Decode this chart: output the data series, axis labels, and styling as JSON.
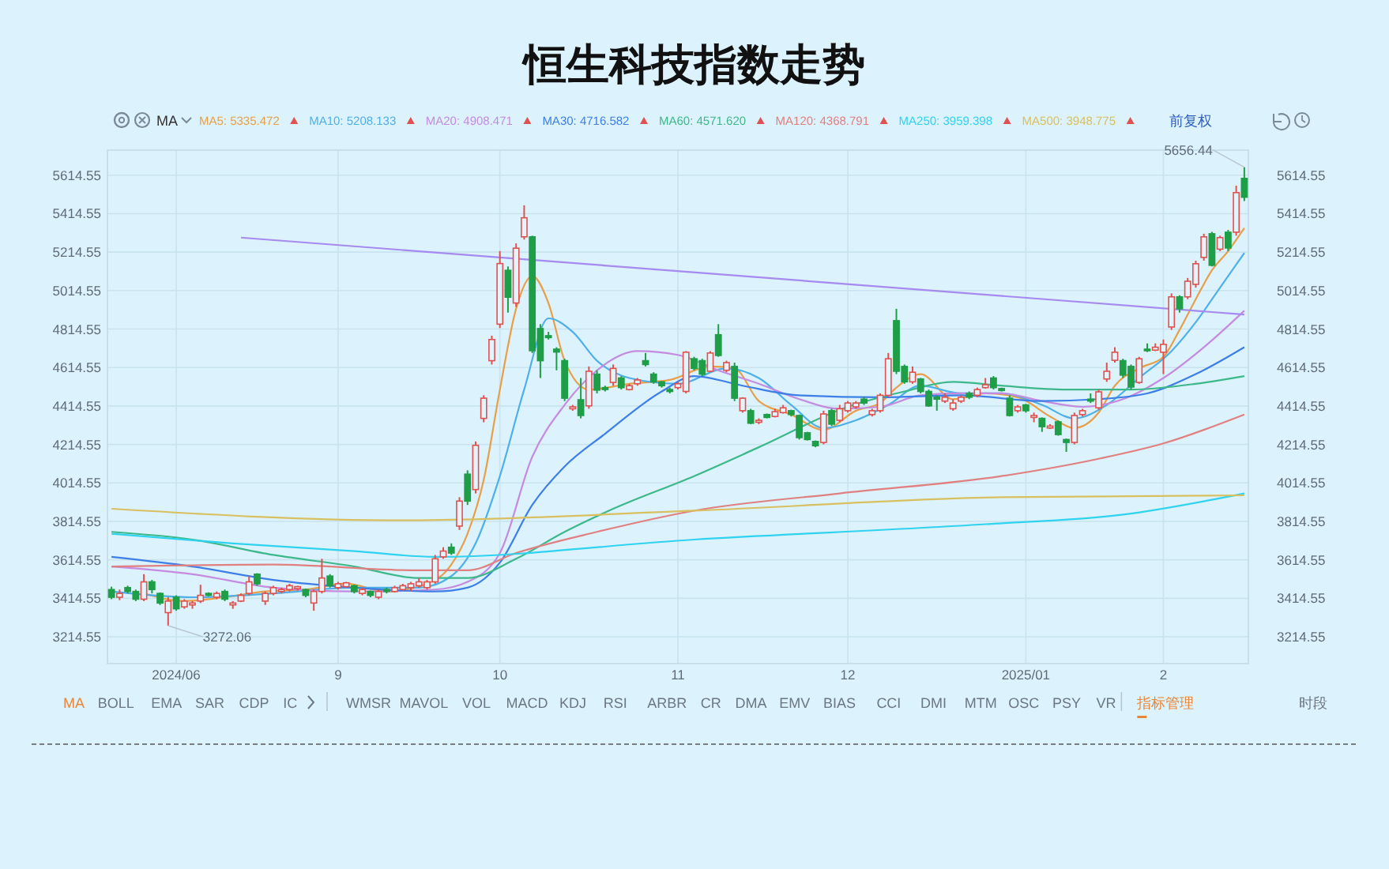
{
  "chart_data": {
    "type": "candlestick",
    "title": "恒生科技指数走势",
    "annotations": [
      "MA",
      "前复权",
      "MA",
      "BOLL",
      "EMA",
      "SAR",
      "CDP",
      "IC",
      "WMSR",
      "MAVOL",
      "VOL",
      "MACD",
      "KDJ",
      "RSI",
      "ARBR",
      "CR",
      "DMA",
      "EMV",
      "BIAS",
      "CCI",
      "DMI",
      "MTM",
      "OSC",
      "PSY",
      "VR",
      "指标管理",
      "时段",
      "5656.44",
      "3272.06"
    ],
    "categories": [
      null,
      null,
      null,
      null,
      null,
      null,
      null,
      null,
      "2024/06",
      null,
      null,
      null,
      null,
      null,
      null,
      null,
      null,
      null,
      null,
      null,
      null,
      null,
      null,
      null,
      null,
      null,
      null,
      null,
      "9",
      null,
      null,
      null,
      null,
      null,
      null,
      null,
      null,
      null,
      null,
      null,
      null,
      null,
      null,
      null,
      null,
      null,
      null,
      null,
      "10",
      null,
      null,
      null,
      null,
      null,
      null,
      null,
      null,
      null,
      null,
      null,
      null,
      null,
      null,
      null,
      null,
      null,
      null,
      null,
      null,
      null,
      "11",
      null,
      null,
      null,
      null,
      null,
      null,
      null,
      null,
      null,
      null,
      null,
      null,
      null,
      null,
      null,
      null,
      null,
      null,
      null,
      null,
      "12",
      null,
      null,
      null,
      null,
      null,
      null,
      null,
      null,
      null,
      null,
      null,
      null,
      null,
      null,
      null,
      null,
      null,
      null,
      null,
      null,
      null,
      "2025/01",
      null,
      null,
      null,
      null,
      null,
      null,
      null,
      null,
      null,
      null,
      null,
      null,
      null,
      null,
      null,
      null,
      "2",
      null,
      null,
      null,
      null,
      null,
      null,
      null,
      null,
      null,
      null
    ],
    "ohlc": [
      [
        3460,
        3475,
        3410,
        3420
      ],
      [
        3420,
        3460,
        3405,
        3440
      ],
      [
        3470,
        3480,
        3440,
        3450
      ],
      [
        3450,
        3460,
        3400,
        3410
      ],
      [
        3410,
        3540,
        3400,
        3500
      ],
      [
        3500,
        3510,
        3440,
        3460
      ],
      [
        3440,
        3445,
        3380,
        3390
      ],
      [
        3340,
        3420,
        3272.06,
        3400
      ],
      [
        3420,
        3430,
        3350,
        3360
      ],
      [
        3370,
        3410,
        3360,
        3400
      ],
      [
        3380,
        3400,
        3360,
        3390
      ],
      [
        3400,
        3485,
        3390,
        3430
      ],
      [
        3440,
        3445,
        3425,
        3430
      ],
      [
        3420,
        3450,
        3410,
        3440
      ],
      [
        3450,
        3460,
        3400,
        3410
      ],
      [
        3380,
        3400,
        3360,
        3390
      ],
      [
        3400,
        3440,
        3395,
        3430
      ],
      [
        3440,
        3530,
        3430,
        3500
      ],
      [
        3540,
        3545,
        3480,
        3490
      ],
      [
        3400,
        3450,
        3380,
        3440
      ],
      [
        3440,
        3480,
        3430,
        3470
      ],
      [
        3450,
        3470,
        3440,
        3460
      ],
      [
        3460,
        3490,
        3450,
        3480
      ],
      [
        3465,
        3480,
        3455,
        3475
      ],
      [
        3460,
        3465,
        3420,
        3430
      ],
      [
        3390,
        3460,
        3350,
        3450
      ],
      [
        3450,
        3620,
        3440,
        3520
      ],
      [
        3530,
        3540,
        3470,
        3480
      ],
      [
        3470,
        3500,
        3460,
        3490
      ],
      [
        3475,
        3500,
        3470,
        3495
      ],
      [
        3480,
        3485,
        3440,
        3450
      ],
      [
        3440,
        3470,
        3430,
        3460
      ],
      [
        3450,
        3455,
        3420,
        3430
      ],
      [
        3420,
        3460,
        3410,
        3450
      ],
      [
        3460,
        3470,
        3440,
        3450
      ],
      [
        3450,
        3480,
        3445,
        3470
      ],
      [
        3460,
        3490,
        3455,
        3480
      ],
      [
        3470,
        3500,
        3450,
        3490
      ],
      [
        3480,
        3520,
        3470,
        3500
      ],
      [
        3470,
        3510,
        3460,
        3500
      ],
      [
        3500,
        3640,
        3490,
        3620
      ],
      [
        3630,
        3680,
        3620,
        3660
      ],
      [
        3680,
        3700,
        3640,
        3650
      ],
      [
        3790,
        3940,
        3770,
        3920
      ],
      [
        4060,
        4080,
        3900,
        3920
      ],
      [
        3980,
        4230,
        3960,
        4210
      ],
      [
        4350,
        4470,
        4330,
        4455
      ],
      [
        4650,
        4780,
        4630,
        4760
      ],
      [
        4840,
        5220,
        4820,
        5155
      ],
      [
        5120,
        5140,
        4900,
        4980
      ],
      [
        4950,
        5260,
        4930,
        5235
      ],
      [
        5294,
        5458,
        5280,
        5393
      ],
      [
        5294,
        5300,
        4690,
        4702
      ],
      [
        4817,
        4840,
        4560,
        4650
      ],
      [
        4780,
        4800,
        4760,
        4770
      ],
      [
        4710,
        4720,
        4600,
        4695
      ],
      [
        4650,
        4660,
        4440,
        4455
      ],
      [
        4400,
        4420,
        4390,
        4410
      ],
      [
        4447,
        4560,
        4350,
        4365
      ],
      [
        4415,
        4620,
        4400,
        4595
      ],
      [
        4580,
        4600,
        4480,
        4497
      ],
      [
        4510,
        4520,
        4490,
        4500
      ],
      [
        4537,
        4630,
        4520,
        4610
      ],
      [
        4560,
        4570,
        4500,
        4510
      ],
      [
        4500,
        4530,
        4495,
        4520
      ],
      [
        4530,
        4560,
        4520,
        4550
      ],
      [
        4650,
        4690,
        4620,
        4630
      ],
      [
        4580,
        4590,
        4530,
        4540
      ],
      [
        4540,
        4545,
        4510,
        4520
      ],
      [
        4500,
        4510,
        4480,
        4490
      ],
      [
        4510,
        4540,
        4500,
        4530
      ],
      [
        4490,
        4700,
        4480,
        4694
      ],
      [
        4660,
        4670,
        4600,
        4610
      ],
      [
        4650,
        4660,
        4570,
        4580
      ],
      [
        4595,
        4700,
        4590,
        4690
      ],
      [
        4785,
        4840,
        4670,
        4677
      ],
      [
        4600,
        4650,
        4590,
        4640
      ],
      [
        4620,
        4640,
        4440,
        4455
      ],
      [
        4390,
        4460,
        4380,
        4455
      ],
      [
        4390,
        4400,
        4320,
        4325
      ],
      [
        4330,
        4350,
        4320,
        4340
      ],
      [
        4370,
        4375,
        4350,
        4355
      ],
      [
        4360,
        4400,
        4355,
        4385
      ],
      [
        4380,
        4420,
        4375,
        4405
      ],
      [
        4390,
        4395,
        4360,
        4370
      ],
      [
        4365,
        4370,
        4240,
        4250
      ],
      [
        4275,
        4280,
        4235,
        4240
      ],
      [
        4230,
        4235,
        4200,
        4208
      ],
      [
        4225,
        4390,
        4215,
        4373
      ],
      [
        4390,
        4400,
        4310,
        4320
      ],
      [
        4340,
        4420,
        4330,
        4400
      ],
      [
        4390,
        4440,
        4380,
        4430
      ],
      [
        4410,
        4440,
        4400,
        4430
      ],
      [
        4450,
        4460,
        4420,
        4430
      ],
      [
        4370,
        4400,
        4360,
        4390
      ],
      [
        4390,
        4480,
        4380,
        4470
      ],
      [
        4470,
        4690,
        4460,
        4660
      ],
      [
        4858,
        4920,
        4580,
        4595
      ],
      [
        4620,
        4630,
        4530,
        4540
      ],
      [
        4540,
        4620,
        4530,
        4590
      ],
      [
        4555,
        4560,
        4480,
        4490
      ],
      [
        4490,
        4500,
        4410,
        4415
      ],
      [
        4460,
        4470,
        4390,
        4450
      ],
      [
        4440,
        4480,
        4430,
        4460
      ],
      [
        4400,
        4450,
        4390,
        4430
      ],
      [
        4440,
        4470,
        4430,
        4460
      ],
      [
        4480,
        4490,
        4450,
        4460
      ],
      [
        4470,
        4510,
        4460,
        4500
      ],
      [
        4510,
        4560,
        4505,
        4525
      ],
      [
        4560,
        4570,
        4500,
        4510
      ],
      [
        4505,
        4510,
        4490,
        4495
      ],
      [
        4455,
        4470,
        4360,
        4365
      ],
      [
        4390,
        4420,
        4380,
        4410
      ],
      [
        4420,
        4425,
        4380,
        4390
      ],
      [
        4355,
        4380,
        4330,
        4365
      ],
      [
        4350,
        4355,
        4280,
        4307
      ],
      [
        4300,
        4320,
        4295,
        4310
      ],
      [
        4332,
        4340,
        4260,
        4266
      ],
      [
        4240,
        4245,
        4176,
        4225
      ],
      [
        4225,
        4380,
        4215,
        4365
      ],
      [
        4370,
        4400,
        4360,
        4390
      ],
      [
        4450,
        4480,
        4430,
        4440
      ],
      [
        4405,
        4500,
        4395,
        4488
      ],
      [
        4555,
        4640,
        4540,
        4595
      ],
      [
        4652,
        4720,
        4640,
        4694
      ],
      [
        4650,
        4660,
        4560,
        4575
      ],
      [
        4620,
        4630,
        4500,
        4513
      ],
      [
        4537,
        4670,
        4530,
        4660
      ],
      [
        4710,
        4740,
        4695,
        4702
      ],
      [
        4705,
        4740,
        4700,
        4720
      ],
      [
        4694,
        4760,
        4580,
        4735
      ],
      [
        4825,
        5000,
        4810,
        4982
      ],
      [
        4982,
        4990,
        4900,
        4920
      ],
      [
        4982,
        5080,
        4970,
        5063
      ],
      [
        5047,
        5170,
        5030,
        5154
      ],
      [
        5187,
        5310,
        5170,
        5294
      ],
      [
        5310,
        5320,
        5140,
        5146
      ],
      [
        5230,
        5300,
        5220,
        5290
      ],
      [
        5318,
        5330,
        5220,
        5236
      ],
      [
        5318,
        5560,
        5300,
        5524
      ],
      [
        5598,
        5656.44,
        5480,
        5500
      ]
    ],
    "series": [
      {
        "type": "line",
        "name": "MA5: 5335.472",
        "color": "#e8a048",
        "values": [
          null,
          null,
          null,
          null,
          3440,
          null,
          null,
          null,
          null,
          3400,
          null,
          null,
          null,
          null,
          3420,
          null,
          null,
          null,
          null,
          3450,
          null,
          null,
          null,
          null,
          3460,
          null,
          null,
          null,
          null,
          3490,
          null,
          null,
          null,
          null,
          3450,
          null,
          null,
          null,
          null,
          3490,
          null,
          null,
          3590,
          null,
          3750,
          null,
          4030,
          null,
          4500,
          null,
          4920,
          null,
          5090,
          null,
          4950,
          null,
          4650,
          null,
          null,
          4500,
          null,
          null,
          null,
          null,
          4530,
          null,
          null,
          null,
          null,
          4550,
          null,
          null,
          null,
          null,
          4620,
          null,
          null,
          4610,
          null,
          null,
          4440,
          null,
          null,
          null,
          4370,
          null,
          null,
          null,
          4290,
          null,
          null,
          null,
          4390,
          null,
          null,
          4430,
          null,
          4510,
          null,
          null,
          4580,
          null,
          null,
          null,
          4450,
          null,
          null,
          null,
          4480,
          null,
          null,
          null,
          4460,
          null,
          null,
          null,
          4360,
          null,
          null,
          4300,
          null,
          null,
          4380,
          null,
          4520,
          null,
          null,
          4610,
          null,
          null,
          4670,
          null,
          4810,
          null,
          4970,
          null,
          5120,
          null,
          5220,
          null,
          5340
        ]
      },
      {
        "type": "line",
        "name": "MA10: 5208.133",
        "color": "#4fb0e8",
        "values": [
          3450,
          null,
          null,
          null,
          null,
          null,
          null,
          null,
          null,
          null,
          3420,
          null,
          null,
          null,
          null,
          null,
          null,
          null,
          null,
          null,
          3440,
          null,
          null,
          null,
          null,
          null,
          null,
          null,
          null,
          null,
          3470,
          null,
          null,
          null,
          null,
          null,
          null,
          null,
          3470,
          null,
          null,
          null,
          3530,
          null,
          null,
          3700,
          null,
          null,
          4050,
          null,
          null,
          4500,
          null,
          null,
          4870,
          null,
          null,
          4800,
          null,
          null,
          4650,
          null,
          null,
          null,
          4560,
          null,
          null,
          null,
          null,
          null,
          4530,
          null,
          null,
          null,
          null,
          null,
          4610,
          null,
          null,
          null,
          4560,
          null,
          null,
          null,
          4420,
          null,
          null,
          null,
          4300,
          null,
          null,
          null,
          4340,
          null,
          null,
          null,
          4420,
          null,
          null,
          null,
          4520,
          null,
          null,
          null,
          null,
          4480,
          null,
          null,
          null,
          null,
          4480,
          null,
          null,
          null,
          null,
          4420,
          null,
          null,
          null,
          4350,
          null,
          null,
          null,
          4420,
          null,
          null,
          null,
          4560,
          null,
          null,
          null,
          4700,
          null,
          null,
          4850,
          null,
          null,
          5030,
          null,
          null,
          5210
        ]
      },
      {
        "type": "line",
        "name": "MA20: 4908.471",
        "color": "#c58be0",
        "values": [
          3580,
          null,
          null,
          null,
          null,
          null,
          null,
          null,
          null,
          null,
          3540,
          null,
          null,
          null,
          null,
          null,
          null,
          null,
          null,
          null,
          3470,
          null,
          null,
          null,
          null,
          null,
          null,
          null,
          null,
          null,
          3450,
          null,
          null,
          null,
          null,
          null,
          null,
          null,
          null,
          null,
          3460,
          null,
          null,
          null,
          3500,
          null,
          null,
          null,
          3650,
          null,
          null,
          null,
          4150,
          null,
          null,
          null,
          4420,
          null,
          null,
          null,
          4600,
          null,
          null,
          null,
          null,
          4700,
          null,
          null,
          null,
          null,
          4680,
          null,
          null,
          null,
          null,
          4600,
          null,
          null,
          null,
          null,
          4530,
          null,
          null,
          null,
          null,
          4450,
          null,
          null,
          null,
          null,
          4400,
          null,
          null,
          null,
          null,
          4410,
          null,
          null,
          null,
          null,
          4470,
          null,
          null,
          null,
          null,
          4480,
          null,
          null,
          null,
          null,
          4480,
          null,
          null,
          null,
          null,
          4440,
          null,
          null,
          null,
          null,
          4410,
          null,
          null,
          null,
          null,
          4450,
          null,
          null,
          null,
          null,
          4560,
          null,
          null,
          null,
          null,
          4720,
          null,
          null,
          null,
          null,
          4910
        ]
      },
      {
        "type": "line",
        "name": "MA30: 4716.582",
        "color": "#3d7fe6",
        "values": [
          3630,
          null,
          null,
          null,
          null,
          null,
          null,
          null,
          null,
          null,
          3580,
          null,
          null,
          null,
          null,
          null,
          null,
          null,
          null,
          null,
          3510,
          null,
          null,
          null,
          null,
          null,
          null,
          null,
          null,
          null,
          3470,
          null,
          null,
          null,
          null,
          null,
          null,
          null,
          null,
          null,
          3450,
          null,
          null,
          null,
          3470,
          null,
          null,
          null,
          3600,
          null,
          null,
          null,
          3900,
          null,
          null,
          null,
          4100,
          null,
          null,
          null,
          null,
          4270,
          null,
          null,
          null,
          null,
          null,
          null,
          4490,
          null,
          null,
          null,
          4570,
          null,
          null,
          null,
          null,
          null,
          4520,
          null,
          null,
          null,
          null,
          null,
          null,
          4470,
          null,
          null,
          null,
          null,
          null,
          null,
          null,
          null,
          null,
          4460,
          null,
          null,
          null,
          null,
          null,
          null,
          null,
          null,
          null,
          4470,
          null,
          null,
          null,
          null,
          null,
          null,
          null,
          null,
          null,
          4440,
          null,
          null,
          null,
          null,
          null,
          null,
          4450,
          null,
          null,
          null,
          null,
          null,
          4480,
          null,
          null,
          null,
          null,
          null,
          4580,
          null,
          null,
          null,
          null,
          null,
          4720
        ]
      },
      {
        "type": "line",
        "name": "MA60: 4571.620",
        "color": "#3db88a",
        "values": [
          3760,
          null,
          null,
          null,
          null,
          null,
          null,
          null,
          null,
          null,
          3720,
          null,
          null,
          null,
          null,
          null,
          null,
          null,
          null,
          null,
          3640,
          null,
          null,
          null,
          null,
          null,
          null,
          null,
          null,
          null,
          3580,
          null,
          null,
          null,
          null,
          null,
          null,
          null,
          3520,
          null,
          null,
          null,
          null,
          null,
          3520,
          null,
          null,
          null,
          null,
          null,
          3620,
          null,
          null,
          null,
          null,
          null,
          3760,
          null,
          null,
          null,
          null,
          null,
          3880,
          null,
          null,
          null,
          null,
          null,
          null,
          null,
          null,
          null,
          4050,
          null,
          null,
          null,
          null,
          null,
          null,
          null,
          4200,
          null,
          null,
          null,
          null,
          null,
          null,
          null,
          null,
          null,
          null,
          4410,
          null,
          null,
          null,
          null,
          null,
          null,
          4490,
          null,
          null,
          null,
          null,
          null,
          4540,
          null,
          null,
          null,
          null,
          null,
          4520,
          null,
          null,
          null,
          null,
          null,
          null,
          null,
          4500,
          null,
          null,
          null,
          null,
          null,
          null,
          null,
          4500,
          null,
          null,
          null,
          null,
          null,
          null,
          null,
          4530,
          null,
          null,
          null,
          null,
          null,
          4570
        ]
      },
      {
        "type": "line",
        "name": "MA120: 4368.791",
        "color": "#e08080",
        "values": [
          3580,
          null,
          null,
          null,
          null,
          null,
          null,
          null,
          null,
          null,
          null,
          null,
          null,
          null,
          null,
          null,
          null,
          null,
          null,
          null,
          3590,
          null,
          null,
          null,
          null,
          null,
          null,
          null,
          null,
          null,
          null,
          null,
          null,
          null,
          null,
          null,
          null,
          null,
          3560,
          null,
          null,
          null,
          null,
          null,
          3560,
          null,
          null,
          null,
          null,
          null,
          3650,
          null,
          null,
          null,
          null,
          null,
          null,
          null,
          null,
          null,
          3760,
          null,
          null,
          null,
          null,
          null,
          null,
          null,
          null,
          null,
          null,
          null,
          3870,
          null,
          null,
          null,
          null,
          null,
          null,
          null,
          null,
          null,
          null,
          null,
          null,
          null,
          null,
          null,
          null,
          null,
          3960,
          null,
          null,
          null,
          null,
          null,
          null,
          null,
          null,
          null,
          null,
          null,
          null,
          null,
          null,
          null,
          null,
          null,
          null,
          null,
          4050,
          null,
          null,
          null,
          null,
          null,
          null,
          null,
          null,
          null,
          null,
          null,
          4140,
          null,
          null,
          null,
          null,
          null,
          null,
          null,
          4220,
          null,
          null,
          null,
          null,
          null,
          null,
          null,
          null,
          null,
          4370
        ]
      },
      {
        "type": "line",
        "name": "MA250: 3959.398",
        "color": "#2fd3f0",
        "values": [
          3750,
          null,
          null,
          null,
          null,
          null,
          null,
          null,
          null,
          null,
          null,
          null,
          null,
          null,
          null,
          3700,
          null,
          null,
          null,
          null,
          null,
          null,
          null,
          null,
          null,
          null,
          null,
          null,
          null,
          null,
          3660,
          null,
          null,
          null,
          null,
          null,
          null,
          null,
          null,
          null,
          3630,
          null,
          null,
          null,
          null,
          null,
          null,
          null,
          null,
          null,
          null,
          null,
          null,
          null,
          null,
          null,
          null,
          null,
          null,
          null,
          null,
          null,
          null,
          null,
          null,
          null,
          null,
          null,
          null,
          null,
          null,
          null,
          3720,
          null,
          null,
          null,
          null,
          null,
          null,
          null,
          null,
          null,
          null,
          null,
          null,
          null,
          null,
          null,
          null,
          null,
          null,
          null,
          null,
          null,
          null,
          null,
          null,
          null,
          null,
          null,
          null,
          null,
          null,
          null,
          null,
          null,
          null,
          null,
          3800,
          null,
          null,
          null,
          null,
          null,
          null,
          null,
          null,
          null,
          null,
          null,
          null,
          null,
          null,
          null,
          null,
          3850,
          null,
          null,
          null,
          null,
          null,
          null,
          null,
          null,
          null,
          null,
          null,
          null,
          null,
          null,
          3960
        ]
      },
      {
        "type": "line",
        "name": "MA500: 3948.775",
        "color": "#d8c060",
        "values": [
          3880,
          null,
          null,
          null,
          null,
          null,
          null,
          null,
          null,
          null,
          null,
          null,
          null,
          null,
          null,
          null,
          null,
          null,
          null,
          null,
          null,
          null,
          null,
          null,
          null,
          null,
          null,
          null,
          null,
          null,
          null,
          null,
          null,
          null,
          null,
          null,
          3820,
          null,
          null,
          null,
          null,
          null,
          null,
          null,
          null,
          null,
          null,
          null,
          null,
          null,
          null,
          null,
          null,
          null,
          null,
          null,
          null,
          null,
          null,
          null,
          null,
          null,
          null,
          null,
          null,
          null,
          null,
          null,
          null,
          null,
          null,
          null,
          3870,
          null,
          null,
          null,
          null,
          null,
          null,
          null,
          null,
          null,
          null,
          null,
          null,
          null,
          null,
          null,
          null,
          null,
          null,
          null,
          null,
          null,
          null,
          null,
          null,
          null,
          null,
          null,
          null,
          null,
          null,
          null,
          null,
          null,
          null,
          null,
          null,
          null,
          3940,
          null,
          null,
          null,
          null,
          null,
          null,
          null,
          null,
          null,
          null,
          null,
          null,
          null,
          null,
          null,
          null,
          null,
          null,
          null,
          null,
          null,
          null,
          null,
          null,
          null,
          null,
          null,
          null,
          null,
          3950
        ]
      },
      {
        "type": "line",
        "color": "#a58af0",
        "values": [
          null,
          null,
          null,
          null,
          null,
          null,
          null,
          null,
          null,
          null,
          null,
          null,
          null,
          null,
          null,
          null,
          5290,
          null,
          null,
          null,
          null,
          null,
          null,
          null,
          null,
          null,
          null,
          null,
          null,
          null,
          null,
          null,
          null,
          null,
          null,
          null,
          null,
          null,
          null,
          null,
          null,
          null,
          null,
          null,
          null,
          null,
          null,
          null,
          null,
          null,
          null,
          null,
          null,
          null,
          null,
          null,
          null,
          null,
          null,
          null,
          null,
          null,
          null,
          null,
          null,
          null,
          null,
          null,
          null,
          null,
          null,
          null,
          null,
          null,
          null,
          null,
          null,
          null,
          null,
          null,
          null,
          null,
          null,
          null,
          null,
          null,
          null,
          null,
          null,
          null,
          null,
          null,
          null,
          null,
          null,
          null,
          null,
          null,
          null,
          null,
          null,
          null,
          null,
          null,
          null,
          null,
          null,
          null,
          null,
          null,
          null,
          null,
          null,
          null,
          null,
          null,
          null,
          null,
          null,
          null,
          null,
          null,
          null,
          null,
          null,
          null,
          null,
          null,
          null,
          null,
          null,
          null,
          null,
          null,
          null,
          null,
          null,
          null,
          null,
          null,
          4890
        ]
      }
    ],
    "ylim": [
      3075,
      5745
    ],
    "yticks": [
      3214.55,
      3414.55,
      3614.55,
      3814.55,
      4014.55,
      4214.55,
      4414.55,
      4614.55,
      4814.55,
      5014.55,
      5214.55,
      5414.55,
      5614.55
    ],
    "y2lim": [
      3075,
      5745
    ],
    "y2ticks": [
      3214.55,
      3414.55,
      3614.55,
      3814.55,
      4014.55,
      4214.55,
      4414.55,
      4614.55,
      4814.55,
      5014.55,
      5214.55,
      5414.55,
      5614.55
    ],
    "grid": true,
    "legend": "top"
  }
}
